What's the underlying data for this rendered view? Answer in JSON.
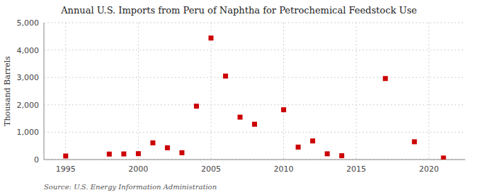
{
  "chart_data": {
    "type": "scatter",
    "title": "Annual U.S. Imports from Peru of Naphtha for Petrochemical Feedstock Use",
    "ylabel": "Thousand Barrels",
    "source": "Source: U.S. Energy Information Administration",
    "x": [
      1995,
      1998,
      1999,
      2000,
      2001,
      2002,
      2003,
      2004,
      2005,
      2006,
      2007,
      2008,
      2010,
      2011,
      2012,
      2013,
      2014,
      2017,
      2019,
      2021
    ],
    "values": [
      130,
      200,
      205,
      215,
      610,
      430,
      250,
      1950,
      4440,
      3050,
      1550,
      1290,
      1820,
      455,
      680,
      210,
      140,
      2960,
      650,
      55
    ],
    "color": "#cc0000",
    "marker": "square",
    "xlim": [
      1993.5,
      2022.5
    ],
    "xticks": [
      1995,
      2000,
      2005,
      2010,
      2015,
      2020
    ],
    "ylim": [
      0,
      5000
    ],
    "yticks": [
      0,
      {
        "value": 1000,
        "label": "1,000"
      },
      {
        "value": 2000,
        "label": "2,000"
      },
      {
        "value": 3000,
        "label": "3,000"
      },
      {
        "value": 4000,
        "label": "4,000"
      },
      {
        "value": 5000,
        "label": "5,000"
      }
    ],
    "grid": true
  }
}
